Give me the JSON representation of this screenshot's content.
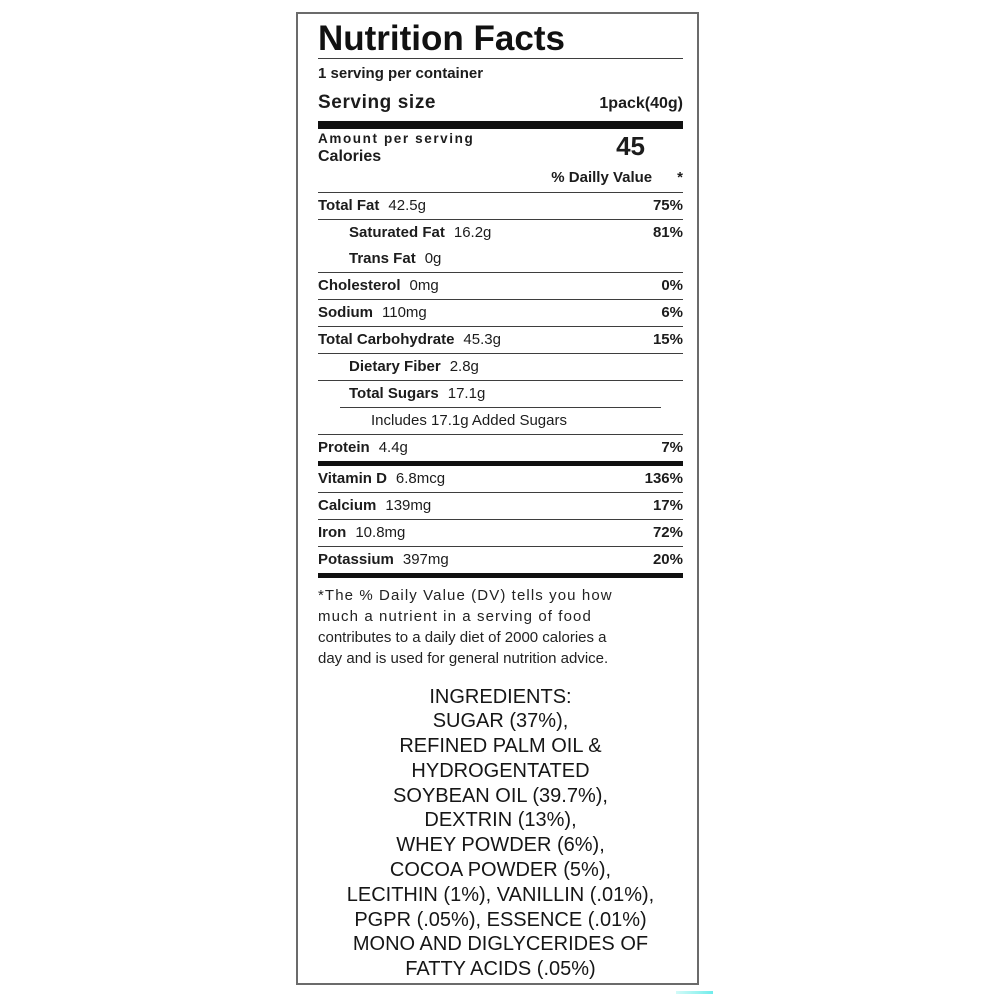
{
  "label": {
    "title": "Nutrition Facts",
    "servings_per_container": "1 serving per container",
    "serving_size": {
      "label": "Serving size",
      "value": "1pack(40g)"
    },
    "calories": {
      "amount_per_serving": "Amount per serving",
      "label": "Calories",
      "value": "45"
    },
    "daily_value": {
      "header": "% Dailly Value",
      "asterisk": "*"
    },
    "nutrients": [
      {
        "name": "Total Fat",
        "amount": "42.5g",
        "dv": "75%"
      },
      {
        "name": "Saturated Fat",
        "amount": "16.2g",
        "dv": "81%"
      },
      {
        "name": "Trans Fat",
        "amount": "0g",
        "dv": ""
      },
      {
        "name": "Cholesterol",
        "amount": "0mg",
        "dv": "0%"
      },
      {
        "name": "Sodium",
        "amount": "110mg",
        "dv": "6%"
      },
      {
        "name": "Total Carbohydrate",
        "amount": "45.3g",
        "dv": "15%"
      },
      {
        "name": "Dietary Fiber",
        "amount": "2.8g",
        "dv": ""
      },
      {
        "name": "Total Sugars",
        "amount": "17.1g",
        "dv": ""
      },
      {
        "name": "Includes 17.1g Added Sugars",
        "amount": "",
        "dv": ""
      },
      {
        "name": "Protein",
        "amount": "4.4g",
        "dv": "7%"
      }
    ],
    "vitamins": [
      {
        "name": "Vitamin D",
        "amount": "6.8mcg",
        "dv": "136%"
      },
      {
        "name": "Calcium",
        "amount": "139mg",
        "dv": "17%"
      },
      {
        "name": "Iron",
        "amount": "10.8mg",
        "dv": "72%"
      },
      {
        "name": "Potassium",
        "amount": "397mg",
        "dv": "20%"
      }
    ],
    "footnote": {
      "lines": [
        "*The % Daily Value (DV) tells you how",
        "much a nutrient in a serving of food",
        "contributes to a daily diet of 2000 calories a",
        "day and is used for general nutrition advice."
      ]
    },
    "ingredients": {
      "lines": [
        "INGREDIENTS:",
        "SUGAR (37%),",
        "REFINED PALM OIL &",
        "HYDROGENTATED",
        "SOYBEAN OIL (39.7%),",
        "DEXTRIN (13%),",
        "WHEY POWDER (6%),",
        "COCOA POWDER (5%),",
        "LECITHIN (1%), VANILLIN (.01%),",
        "PGPR (.05%), ESSENCE (.01%)",
        "MONO AND DIGLYCERIDES OF",
        "FATTY ACIDS (.05%)"
      ]
    },
    "colors": {
      "border_gray": "#6b6b6b",
      "rule_dark": "#3e3e3e",
      "thick_bar_black": "#101010",
      "artifact_cyan": "#9af3f0"
    }
  }
}
